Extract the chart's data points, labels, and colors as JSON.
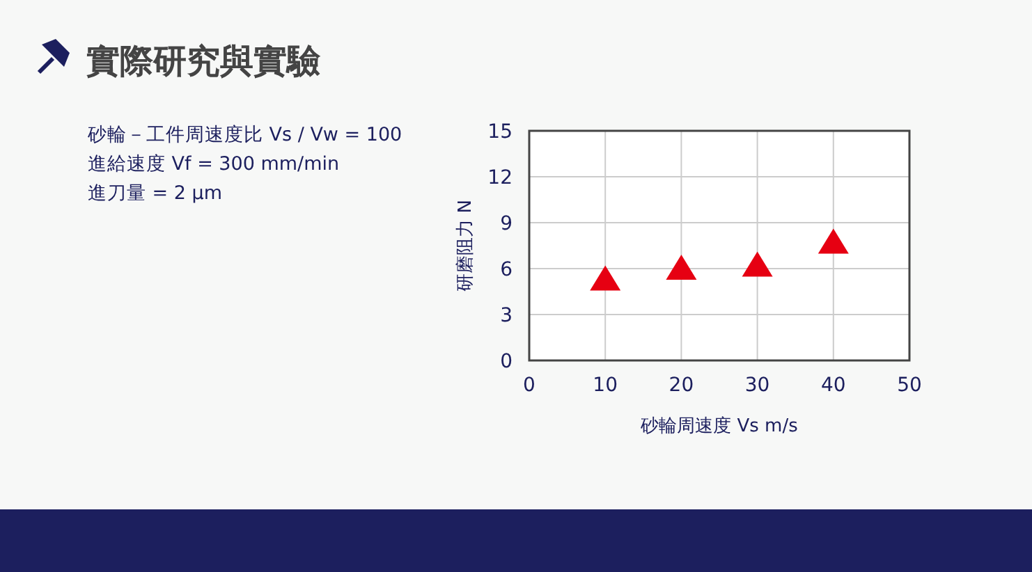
{
  "chart_data": {
    "type": "scatter",
    "title": "實際研究與實驗",
    "annotations": [
      "砂輪－工件周速度比 Vs / Vw  = 100",
      "進給速度 Vf  = 300 mm/min",
      "進刀量 = 2 μm"
    ],
    "xlabel": "砂輪周速度 Vs m/s",
    "ylabel": "研磨阻力 N",
    "xlim": [
      0,
      50
    ],
    "xticks": [
      0,
      10,
      20,
      30,
      40,
      50
    ],
    "ylim": [
      0,
      15
    ],
    "yticks": [
      0,
      3,
      6,
      9,
      12,
      15
    ],
    "grid": true,
    "marker": "triangle",
    "series": [
      {
        "color": "#e60012",
        "x": [
          10,
          20,
          30,
          40
        ],
        "values": [
          5.3,
          6.0,
          6.2,
          7.7
        ]
      }
    ]
  }
}
